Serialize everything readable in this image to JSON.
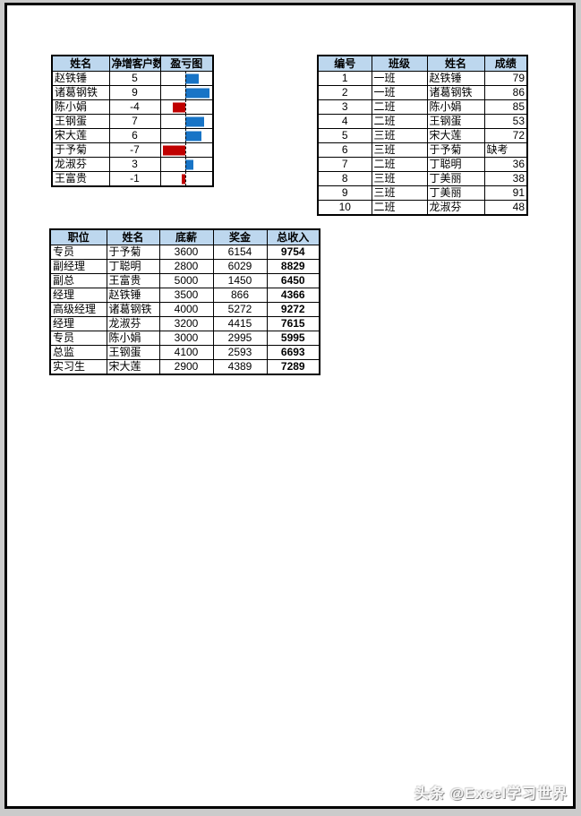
{
  "colors": {
    "page_background": "#cbcbcb",
    "sheet_border": "#000000",
    "header_bg": "#bdd7ee",
    "grid": "#000000",
    "bar_positive": "#1874c6",
    "bar_negative": "#c00000"
  },
  "profit_table": {
    "headers": [
      "姓名",
      "净增客户数",
      "盈亏图"
    ],
    "bar_scale": {
      "max_positive": 9,
      "max_negative": 7
    },
    "rows": [
      {
        "name": "赵铁锤",
        "value": 5
      },
      {
        "name": "诸葛钢铁",
        "value": 9
      },
      {
        "name": "陈小娟",
        "value": -4
      },
      {
        "name": "王钢蛋",
        "value": 7
      },
      {
        "name": "宋大莲",
        "value": 6
      },
      {
        "name": "于予菊",
        "value": -7
      },
      {
        "name": "龙淑芬",
        "value": 3
      },
      {
        "name": "王富贵",
        "value": -1
      }
    ]
  },
  "score_table": {
    "headers": [
      "编号",
      "班级",
      "姓名",
      "成绩"
    ],
    "rows": [
      [
        "1",
        "一班",
        "赵铁锤",
        "79"
      ],
      [
        "2",
        "一班",
        "诸葛钢铁",
        "86"
      ],
      [
        "3",
        "二班",
        "陈小娟",
        "85"
      ],
      [
        "4",
        "二班",
        "王钢蛋",
        "53"
      ],
      [
        "5",
        "三班",
        "宋大莲",
        "72"
      ],
      [
        "6",
        "三班",
        "于予菊",
        "缺考"
      ],
      [
        "7",
        "二班",
        "丁聪明",
        "36"
      ],
      [
        "8",
        "三班",
        "丁美丽",
        "38"
      ],
      [
        "9",
        "三班",
        "丁美丽",
        "91"
      ],
      [
        "10",
        "二班",
        "龙淑芬",
        "48"
      ]
    ]
  },
  "income_table": {
    "headers": [
      "职位",
      "姓名",
      "底薪",
      "奖金",
      "总收入"
    ],
    "rows": [
      [
        "专员",
        "于予菊",
        "3600",
        "6154",
        "9754"
      ],
      [
        "副经理",
        "丁聪明",
        "2800",
        "6029",
        "8829"
      ],
      [
        "副总",
        "王富贵",
        "5000",
        "1450",
        "6450"
      ],
      [
        "经理",
        "赵铁锤",
        "3500",
        "866",
        "4366"
      ],
      [
        "高级经理",
        "诸葛钢铁",
        "4000",
        "5272",
        "9272"
      ],
      [
        "经理",
        "龙淑芬",
        "3200",
        "4415",
        "7615"
      ],
      [
        "专员",
        "陈小娟",
        "3000",
        "2995",
        "5995"
      ],
      [
        "总监",
        "王钢蛋",
        "4100",
        "2593",
        "6693"
      ],
      [
        "实习生",
        "宋大莲",
        "2900",
        "4389",
        "7289"
      ]
    ]
  },
  "watermark": {
    "text": "头条 @Excel学习世界"
  }
}
